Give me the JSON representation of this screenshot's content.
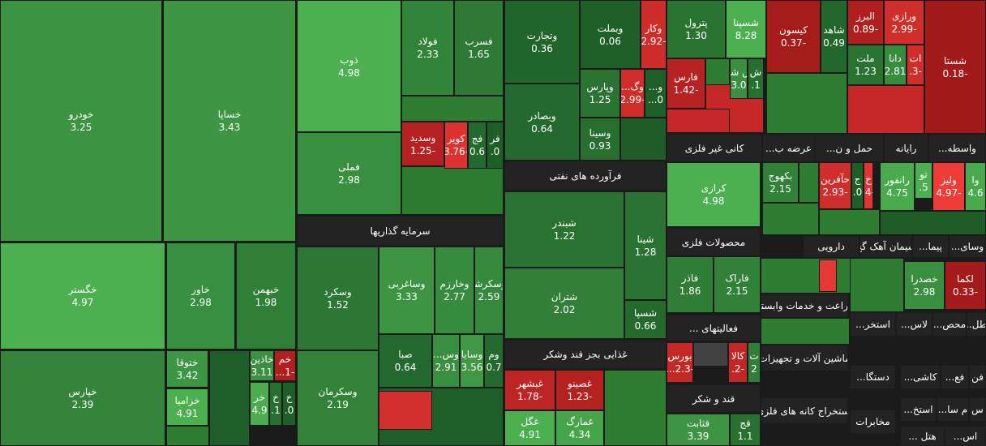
{
  "tiles": [
    {
      "name": "خودرو",
      "change": "3.25"
    },
    {
      "name": "خساپا",
      "change": "3.43"
    },
    {
      "name": "خگستر",
      "change": "4.97"
    },
    {
      "name": "خپارس",
      "change": "2.39"
    },
    {
      "name": "خاور",
      "change": "2.98"
    },
    {
      "name": "خبهمن",
      "change": "1.98"
    },
    {
      "name": "ختوقا",
      "change": "3.42"
    },
    {
      "name": "خزامیا",
      "change": "4.91"
    },
    {
      "name": "خاذین",
      "change": "3.11"
    },
    {
      "name": "خم",
      "change": "-1..."
    },
    {
      "name": "خر",
      "change": "4.9"
    },
    {
      "name": "خ",
      "change": "1."
    },
    {
      "name": "خ",
      "change": "0."
    },
    {
      "name": "ذوب",
      "change": "4.98"
    },
    {
      "name": "فولاد",
      "change": "2.33"
    },
    {
      "name": "فسرب",
      "change": "1.65"
    },
    {
      "name": "فملی",
      "change": "2.98"
    },
    {
      "name": "وسدید",
      "change": "-1.25"
    },
    {
      "name": "کویر",
      "change": "-3.76"
    },
    {
      "name": "فج",
      "change": "0.6"
    },
    {
      "name": "فر",
      "change": "0."
    },
    {
      "name": "وسکرد",
      "change": "1.52"
    },
    {
      "name": "وساغربی",
      "change": "3.33"
    },
    {
      "name": "وخارزم",
      "change": "2.77"
    },
    {
      "name": "وسکرشا",
      "change": "2.59"
    },
    {
      "name": "وسکرمان",
      "change": "2.19"
    },
    {
      "name": "صبا",
      "change": "0.64"
    },
    {
      "name": "وس...",
      "change": "2.91"
    },
    {
      "name": "وسایا",
      "change": "3.56"
    },
    {
      "name": "وم",
      "change": "0.7"
    },
    {
      "name": "وتجارت",
      "change": "0.36"
    },
    {
      "name": "وبملت",
      "change": "0.06"
    },
    {
      "name": "وکار",
      "change": "-2.92"
    },
    {
      "name": "وپارس",
      "change": "1.25"
    },
    {
      "name": "وگ...",
      "change": "-2.99"
    },
    {
      "name": "و...",
      "change": "0..."
    },
    {
      "name": "وبصادر",
      "change": "0.64"
    },
    {
      "name": "وسینا",
      "change": "0.93"
    },
    {
      "name": "شبندر",
      "change": "1.22"
    },
    {
      "name": "شینا",
      "change": "1.28"
    },
    {
      "name": "شتران",
      "change": "2.02"
    },
    {
      "name": "شسپا",
      "change": "0.66"
    },
    {
      "name": "غبشهر",
      "change": "-1.78"
    },
    {
      "name": "غصینو",
      "change": "-1.23"
    },
    {
      "name": "غگل",
      "change": "4.91"
    },
    {
      "name": "غمارگ",
      "change": "4.34"
    },
    {
      "name": "پترول",
      "change": "1.30"
    },
    {
      "name": "شسپنا",
      "change": "8.28"
    },
    {
      "name": "فارس",
      "change": "-1.42"
    },
    {
      "name": "ش شل",
      "change": "3.0"
    },
    {
      "name": "ش",
      "change": "1."
    },
    {
      "name": "کرازی",
      "change": "4.98"
    },
    {
      "name": "فاذر",
      "change": "1.86"
    },
    {
      "name": "فاراک",
      "change": "2.15"
    },
    {
      "name": "بورس",
      "change": "-2.3..."
    },
    {
      "name": "کالا",
      "change": "-2."
    },
    {
      "name": "ت",
      "change": "2"
    },
    {
      "name": "قثابت",
      "change": "3.39"
    },
    {
      "name": "قج",
      "change": "1.1"
    },
    {
      "name": "کیسون",
      "change": "-0.37"
    },
    {
      "name": "شاهد",
      "change": "0.49"
    },
    {
      "name": "البرز",
      "change": "-0.89"
    },
    {
      "name": "ورازی",
      "change": "-2.99"
    },
    {
      "name": "شستا",
      "change": "-0.18"
    },
    {
      "name": "ملت",
      "change": "1.23"
    },
    {
      "name": "دانا",
      "change": "2.81"
    },
    {
      "name": "ات",
      "change": "-3."
    },
    {
      "name": "بکهوج",
      "change": "2.15"
    },
    {
      "name": "حآفرین",
      "change": "-2.93"
    },
    {
      "name": "ج",
      "change": "0."
    },
    {
      "name": "خ",
      "change": "-4."
    },
    {
      "name": "رانفور",
      "change": "4.75"
    },
    {
      "name": "تو",
      "change": "5."
    },
    {
      "name": "ولیز",
      "change": "-4.97"
    },
    {
      "name": "وا",
      "change": "4.6"
    },
    {
      "name": "خصدرا",
      "change": "2.98"
    },
    {
      "name": "لکما",
      "change": "-0.33"
    }
  ],
  "sectors": [
    "سرمایه گذاریها",
    "فرآورده های نفتی",
    "غذایی بجز قند وشکر",
    "کانی غیر فلزی",
    "عرضه ب...",
    "حمل و ن...",
    "رایانه",
    "واسطه...",
    "محصولات فلزی",
    "دارویی",
    "سیمان آهک گچ",
    "پیما...",
    "وسای...",
    "فعالیتهای ...",
    "قند و شکر",
    "زراعت و خدمات وابسته",
    "استخر...",
    "لاس...",
    "محص...",
    "اطل...",
    "ماشین آلات و تجهیزات",
    "دستگا...",
    "کاشی...",
    "فع...",
    "فن",
    "استخراج کانه های فلزی",
    "مخابرات",
    "استخ...",
    "م سا...",
    "س",
    "هتل ...",
    "اس..."
  ]
}
